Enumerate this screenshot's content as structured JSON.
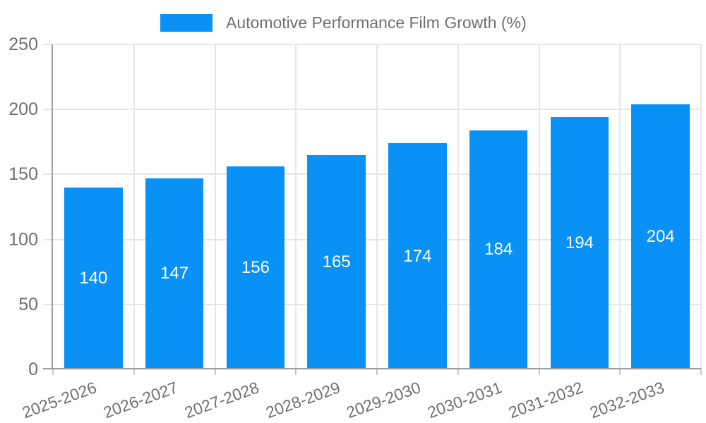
{
  "chart_data": {
    "type": "bar",
    "title": "Automotive Performance Film Growth (%)",
    "categories": [
      "2025-2026",
      "2026-2027",
      "2027-2028",
      "2028-2029",
      "2029-2030",
      "2030-2031",
      "2031-2032",
      "2032-2033"
    ],
    "values": [
      140,
      147,
      156,
      165,
      174,
      184,
      194,
      204
    ],
    "xlabel": "",
    "ylabel": "",
    "ylim": [
      0,
      250
    ],
    "yticks": [
      0,
      50,
      100,
      150,
      200,
      250
    ],
    "grid": true,
    "legend_position": "top",
    "bar_color": "#0a91f5",
    "value_label_color": "#ffffff",
    "axis_text_color": "#707070",
    "gridline_color": "#e6e6e6",
    "axis_line_color": "#9e9e9e"
  },
  "legend": {
    "label": "Automotive Performance Film Growth (%)"
  }
}
